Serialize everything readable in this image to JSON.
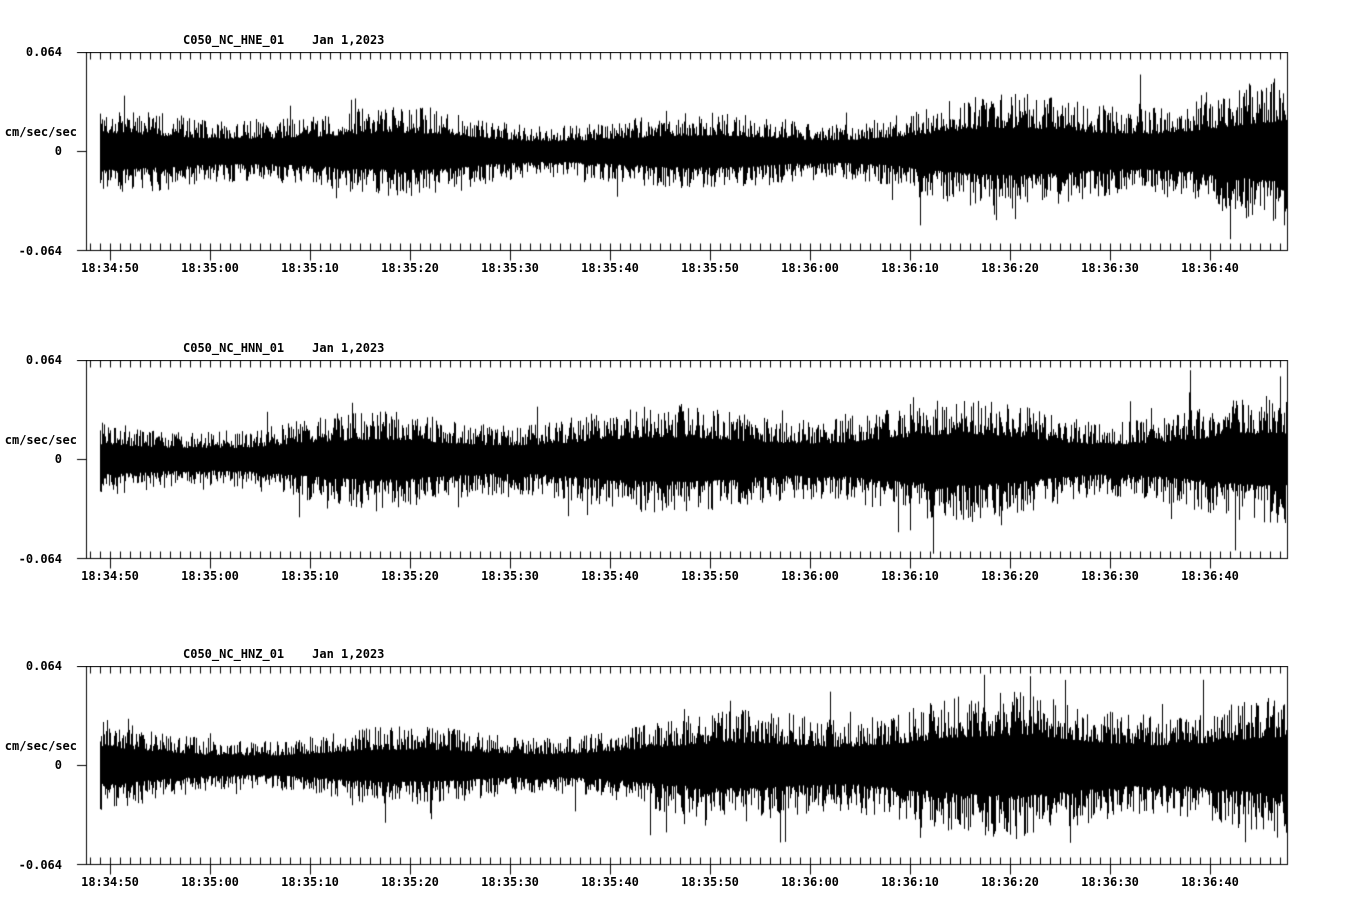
{
  "figure": {
    "background_color": "#ffffff",
    "foreground_color": "#000000"
  },
  "y_axis": {
    "max_label": "0.064",
    "zero_label": "0",
    "min_label": "-0.064",
    "unit": "cm/sec/sec"
  },
  "chart_data": [
    {
      "type": "line",
      "station": "C050_NC_HNE_01",
      "date": "Jan 1,2023",
      "ylabel": "cm/sec/sec",
      "ylim": [
        -0.064,
        0.064
      ],
      "y_tick_labels": [
        "0.064",
        "0",
        "-0.064"
      ],
      "x_tick_labels": [
        "18:34:50",
        "18:35:00",
        "18:35:10",
        "18:35:20",
        "18:35:30",
        "18:35:40",
        "18:35:50",
        "18:36:00",
        "18:36:10",
        "18:36:20",
        "18:36:30",
        "18:36:40"
      ],
      "x_major_interval_s": 10,
      "x_minor_interval_s": 1,
      "grid": false,
      "line_color": "#000000",
      "envelope_sample_interval_s": 5,
      "envelope_cm_s2": [
        0.029,
        0.028,
        0.028,
        0.029,
        0.028,
        0.029,
        0.03,
        0.032,
        0.029,
        0.028,
        0.029,
        0.029,
        0.03,
        0.031,
        0.033,
        0.035,
        0.038,
        0.041,
        0.043,
        0.045,
        0.046,
        0.047,
        0.046,
        0.048,
        0.049
      ],
      "notable_peaks": [
        {
          "time": "18:36:11",
          "value": -0.048
        },
        {
          "time": "18:36:33",
          "value": 0.05
        },
        {
          "time": "18:36:42",
          "value": -0.057
        }
      ]
    },
    {
      "type": "line",
      "station": "C050_NC_HNN_01",
      "date": "Jan 1,2023",
      "ylabel": "cm/sec/sec",
      "ylim": [
        -0.064,
        0.064
      ],
      "y_tick_labels": [
        "0.064",
        "0",
        "-0.064"
      ],
      "x_tick_labels": [
        "18:34:50",
        "18:35:00",
        "18:35:10",
        "18:35:20",
        "18:35:30",
        "18:35:40",
        "18:35:50",
        "18:36:00",
        "18:36:10",
        "18:36:20",
        "18:36:30",
        "18:36:40"
      ],
      "x_major_interval_s": 10,
      "x_minor_interval_s": 1,
      "grid": false,
      "line_color": "#000000",
      "envelope_sample_interval_s": 5,
      "envelope_cm_s2": [
        0.029,
        0.029,
        0.03,
        0.03,
        0.031,
        0.032,
        0.033,
        0.032,
        0.032,
        0.033,
        0.034,
        0.034,
        0.035,
        0.036,
        0.038,
        0.04,
        0.042,
        0.044,
        0.045,
        0.045,
        0.044,
        0.046,
        0.046,
        0.048,
        0.051
      ],
      "notable_peaks": [
        {
          "time": "18:36:10",
          "value": -0.046
        },
        {
          "time": "18:36:38",
          "value": 0.058
        },
        {
          "time": "18:36:47",
          "value": 0.054
        }
      ]
    },
    {
      "type": "line",
      "station": "C050_NC_HNZ_01",
      "date": "Jan 1,2023",
      "ylabel": "cm/sec/sec",
      "ylim": [
        -0.064,
        0.064
      ],
      "y_tick_labels": [
        "0.064",
        "0",
        "-0.064"
      ],
      "x_tick_labels": [
        "18:34:50",
        "18:35:00",
        "18:35:10",
        "18:35:20",
        "18:35:30",
        "18:35:40",
        "18:35:50",
        "18:36:00",
        "18:36:10",
        "18:36:20",
        "18:36:30",
        "18:36:40"
      ],
      "x_major_interval_s": 10,
      "x_minor_interval_s": 1,
      "grid": false,
      "line_color": "#000000",
      "envelope_sample_interval_s": 5,
      "envelope_cm_s2": [
        0.034,
        0.03,
        0.029,
        0.03,
        0.03,
        0.031,
        0.03,
        0.031,
        0.031,
        0.032,
        0.032,
        0.033,
        0.035,
        0.04,
        0.042,
        0.043,
        0.045,
        0.046,
        0.046,
        0.047,
        0.047,
        0.048,
        0.047,
        0.048,
        0.049
      ],
      "notable_peaks": [
        {
          "time": "18:35:57",
          "value": -0.05
        },
        {
          "time": "18:36:02",
          "value": 0.048
        },
        {
          "time": "18:36:11",
          "value": -0.047
        },
        {
          "time": "18:36:22",
          "value": 0.058
        }
      ]
    }
  ]
}
